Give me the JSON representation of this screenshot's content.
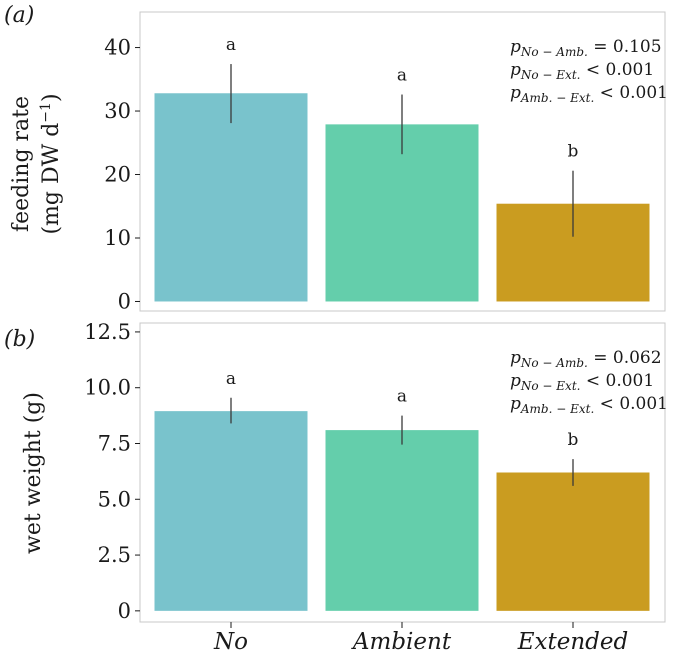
{
  "chart_data": [
    {
      "type": "bar",
      "panel_label": "(a)",
      "ylabel_line1": "feeding rate",
      "ylabel_line2": "(mg DW d",
      "ylabel_sup": "−1",
      "ylabel_close": ")",
      "categories": [
        "No",
        "Ambient",
        "Extended"
      ],
      "values": [
        32.8,
        27.9,
        15.4
      ],
      "error_low": [
        28.1,
        23.2,
        10.2
      ],
      "error_high": [
        37.4,
        32.6,
        20.6
      ],
      "letters": [
        "a",
        "a",
        "b"
      ],
      "colors": [
        "#79c3cc",
        "#64ceab",
        "#ca9c20"
      ],
      "ylim": [
        -1.5,
        45.6
      ],
      "yticks": [
        0,
        10,
        20,
        30,
        40
      ],
      "ytick_labels": [
        "0",
        "10",
        "20",
        "30",
        "40"
      ],
      "grid": false,
      "stats": [
        {
          "prefix": "p",
          "sub": "No − Amb.",
          "rest": " = 0.105"
        },
        {
          "prefix": "p",
          "sub": "No − Ext.",
          "rest": " < 0.001"
        },
        {
          "prefix": "p",
          "sub": "Amb. − Ext.",
          "rest": " < 0.001"
        }
      ]
    },
    {
      "type": "bar",
      "panel_label": "(b)",
      "ylabel": "wet weight (g)",
      "categories": [
        "No",
        "Ambient",
        "Extended"
      ],
      "values": [
        8.95,
        8.1,
        6.2
      ],
      "error_low": [
        8.4,
        7.45,
        5.6
      ],
      "error_high": [
        9.55,
        8.75,
        6.8
      ],
      "letters": [
        "a",
        "a",
        "b"
      ],
      "colors": [
        "#79c3cc",
        "#64ceab",
        "#ca9c20"
      ],
      "ylim": [
        -0.5,
        12.9
      ],
      "yticks": [
        0,
        2.5,
        5.0,
        7.5,
        10.0,
        12.5
      ],
      "ytick_labels": [
        "0",
        "2.5",
        "5.0",
        "7.5",
        "10.0",
        "12.5"
      ],
      "grid": false,
      "stats": [
        {
          "prefix": "p",
          "sub": "No − Amb.",
          "rest": " = 0.062"
        },
        {
          "prefix": "p",
          "sub": "No − Ext.",
          "rest": " < 0.001"
        },
        {
          "prefix": "p",
          "sub": "Amb. − Ext.",
          "rest": " < 0.001"
        }
      ]
    }
  ]
}
